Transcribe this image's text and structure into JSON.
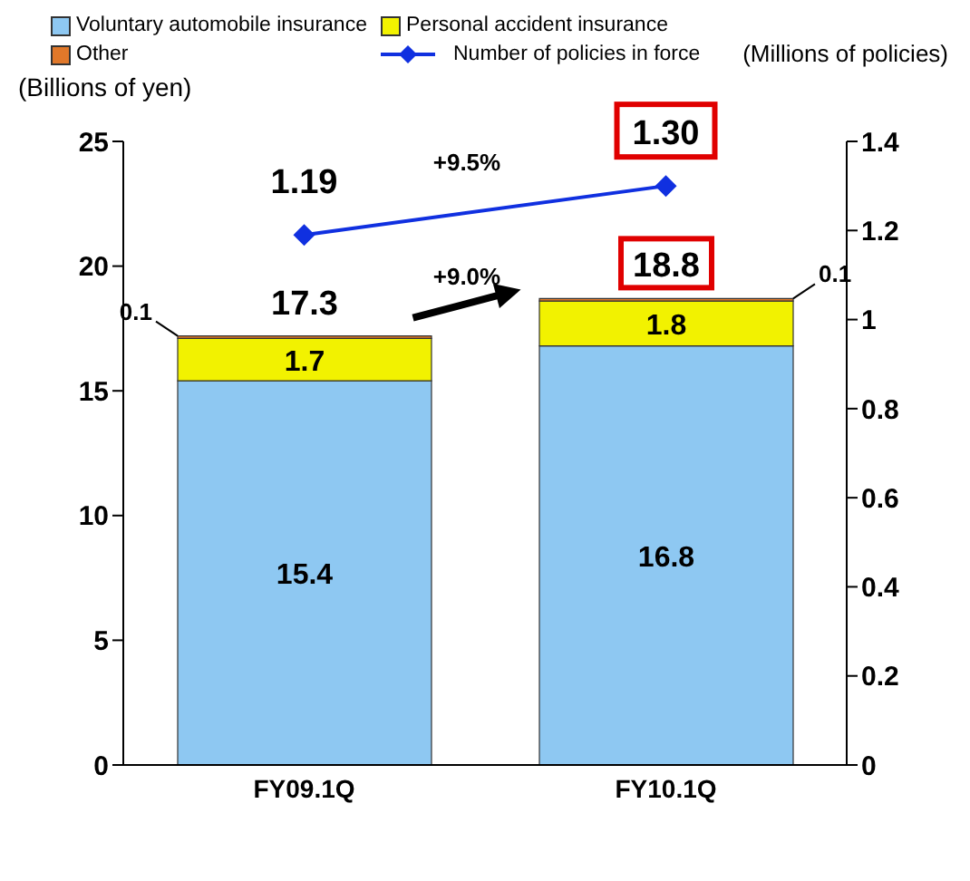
{
  "chart_data": {
    "type": "bar",
    "stacked": true,
    "categories": [
      "FY09.1Q",
      "FY10.1Q"
    ],
    "series": [
      {
        "name": "Voluntary automobile insurance",
        "color": "#8ec8f2",
        "values": [
          15.4,
          16.8
        ]
      },
      {
        "name": "Personal accident insurance",
        "color": "#f2f200",
        "values": [
          1.7,
          1.8
        ]
      },
      {
        "name": "Other",
        "color": "#e0782a",
        "values": [
          0.1,
          0.1
        ]
      },
      {
        "name": "Number of policies in force",
        "type": "line",
        "axis": "y2",
        "color": "#1030e0",
        "values": [
          1.19,
          1.3
        ],
        "value_labels": [
          "1.19",
          "1.30"
        ]
      }
    ],
    "data_labels": true,
    "totals": [
      "17.3",
      "18.8"
    ],
    "ylim": [
      0,
      25
    ],
    "yticks": [
      0,
      5,
      10,
      15,
      20,
      25
    ],
    "y2lim": [
      0,
      1.4
    ],
    "y2ticks": [
      0,
      0.2,
      0.4,
      0.6,
      0.8,
      1,
      1.2,
      1.4
    ],
    "ylabel": "(Billions of yen)",
    "y2label": "(Millions of policies)",
    "annotations": [
      "+9.5%",
      "+9.0%"
    ],
    "legend": "top",
    "marker": "diamond"
  }
}
